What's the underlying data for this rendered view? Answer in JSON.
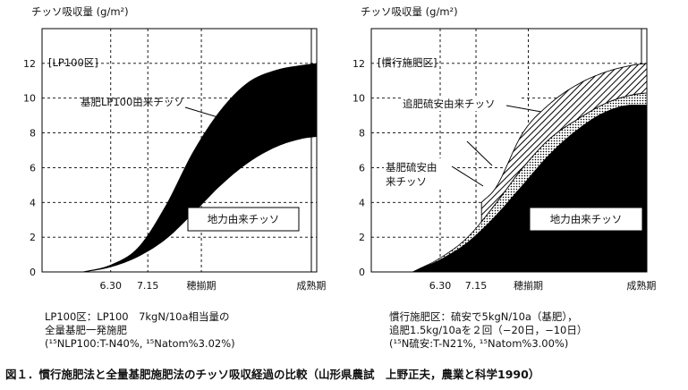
{
  "chart_data": [
    {
      "type": "area",
      "ylabel": "チッソ吸収量 (g/m²)",
      "ylim": [
        0,
        14
      ],
      "yticks": [
        0,
        2,
        4,
        6,
        8,
        10,
        12
      ],
      "xticks": [
        "6.30",
        "7.15",
        "穂揃期",
        "成熟期"
      ],
      "panel_label": "[LP100区]",
      "annotations": {
        "soil": "地力由来チッソ",
        "basal": "基肥LP100由来チッソ"
      },
      "series": [
        {
          "name": "地力由来チッソ",
          "x": [
            0.15,
            0.25,
            0.35,
            0.45,
            0.55,
            0.65,
            0.75,
            0.85,
            0.95,
            1.0
          ],
          "values": [
            0.0,
            0.3,
            0.9,
            1.9,
            3.4,
            5.0,
            6.3,
            7.2,
            7.7,
            7.8
          ]
        },
        {
          "name": "基肥LP100由来チッソ",
          "x": [
            0.15,
            0.25,
            0.35,
            0.45,
            0.55,
            0.65,
            0.75,
            0.85,
            0.95,
            1.0
          ],
          "values": [
            0.0,
            0.4,
            1.4,
            3.8,
            6.9,
            9.3,
            10.9,
            11.6,
            11.9,
            12.0
          ]
        }
      ],
      "caption": [
        "LP100区：LP100　7kgN/10a相当量の",
        "全量基肥一発施肥",
        "(¹⁵NLP100:T-N40%, ¹⁵Natom%3.02%)"
      ]
    },
    {
      "type": "area",
      "ylabel": "チッソ吸収量 (g/m²)",
      "ylim": [
        0,
        14
      ],
      "yticks": [
        0,
        2,
        4,
        6,
        8,
        10,
        12
      ],
      "xticks": [
        "6.30",
        "7.15",
        "穂揃期",
        "成熟期"
      ],
      "panel_label": "[慣行施肥区]",
      "annotations": {
        "soil": "地力由来チッソ",
        "basal": "基肥硫安由来チッソ",
        "top": "追肥硫安由来チッソ"
      },
      "series": [
        {
          "name": "地力由来チッソ",
          "x": [
            0.15,
            0.25,
            0.35,
            0.45,
            0.55,
            0.65,
            0.75,
            0.85,
            0.95,
            1.0
          ],
          "values": [
            0.0,
            0.7,
            1.7,
            3.2,
            5.0,
            6.8,
            8.2,
            9.2,
            9.6,
            9.6
          ]
        },
        {
          "name": "基肥硫安由来チッソ",
          "x": [
            0.15,
            0.25,
            0.35,
            0.45,
            0.55,
            0.65,
            0.75,
            0.85,
            0.95,
            1.0
          ],
          "values": [
            0.0,
            0.8,
            2.0,
            3.9,
            6.0,
            7.7,
            8.8,
            9.7,
            10.2,
            10.3
          ]
        },
        {
          "name": "追肥硫安由来チッソ",
          "x": [
            0.4,
            0.45,
            0.55,
            0.65,
            0.75,
            0.85,
            0.95,
            1.0
          ],
          "values": [
            4.0,
            4.8,
            8.0,
            9.7,
            10.8,
            11.5,
            11.9,
            12.0
          ]
        }
      ],
      "caption": [
        "慣行施肥区：硫安で5kgN/10a（基肥），",
        "追肥1.5kg/10aを２回（−20日，−10日）",
        "(¹⁵N硫安:T-N21%, ¹⁵Natom%3.00%)"
      ]
    }
  ],
  "figure_caption": "図１．慣行施肥法と全量基肥施肥法のチッソ吸収経過の比較（山形県農試　上野正夫，農業と科学1990）"
}
